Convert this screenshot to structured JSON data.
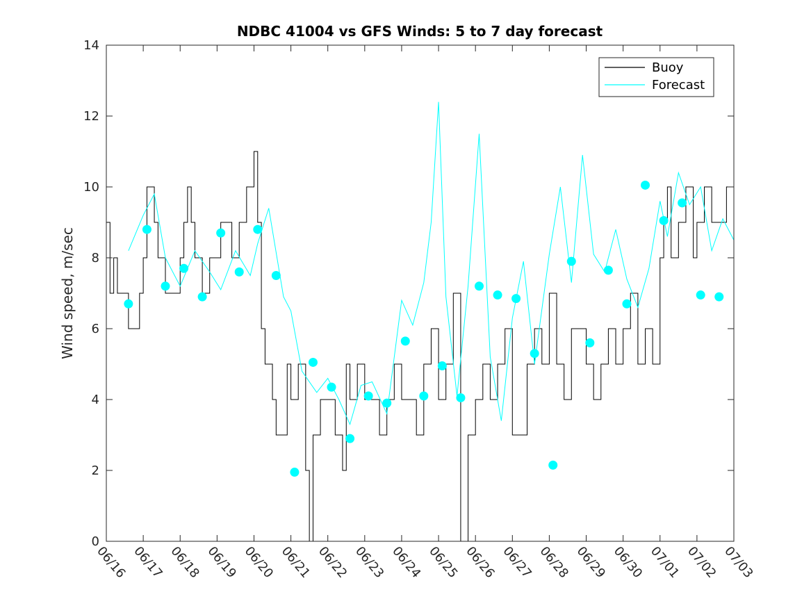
{
  "chart_data": {
    "type": "line",
    "title": "NDBC 41004 vs GFS Winds: 5 to 7 day forecast",
    "xlabel": "",
    "ylabel": "Wind speed, m/sec",
    "ylim": [
      0,
      14
    ],
    "yticks": [
      0,
      2,
      4,
      6,
      8,
      10,
      12,
      14
    ],
    "x_range_days": [
      "06/16",
      "07/03"
    ],
    "xtick_labels": [
      "06/16",
      "06/17",
      "06/18",
      "06/19",
      "06/20",
      "06/21",
      "06/22",
      "06/23",
      "06/24",
      "06/25",
      "06/26",
      "06/27",
      "06/28",
      "06/29",
      "06/30",
      "07/01",
      "07/02",
      "07/03"
    ],
    "legend": {
      "placement": "top-right",
      "entries": [
        "Buoy",
        "Forecast"
      ]
    },
    "grid": false,
    "colors": {
      "buoy": "#000000",
      "forecast": "#00ffff"
    },
    "series": [
      {
        "name": "Buoy",
        "style": "stair-line",
        "x_days": [
          0,
          0.1,
          0.2,
          0.3,
          0.5,
          0.6,
          0.7,
          0.9,
          1.0,
          1.1,
          1.2,
          1.3,
          1.4,
          1.6,
          1.8,
          2.0,
          2.1,
          2.2,
          2.3,
          2.4,
          2.5,
          2.6,
          2.8,
          3.0,
          3.1,
          3.2,
          3.3,
          3.4,
          3.6,
          3.8,
          4.0,
          4.1,
          4.2,
          4.3,
          4.5,
          4.6,
          4.7,
          4.9,
          5.0,
          5.2,
          5.4,
          5.5,
          5.6,
          5.8,
          6.0,
          6.2,
          6.4,
          6.5,
          6.6,
          6.8,
          7.0,
          7.2,
          7.4,
          7.6,
          7.8,
          8.0,
          8.2,
          8.4,
          8.6,
          8.8,
          9.0,
          9.2,
          9.4,
          9.6,
          9.8,
          10.0,
          10.2,
          10.4,
          10.6,
          10.8,
          11.0,
          11.2,
          11.4,
          11.6,
          11.8,
          12.0,
          12.2,
          12.4,
          12.6,
          12.8,
          13.0,
          13.2,
          13.4,
          13.6,
          13.8,
          14.0,
          14.2,
          14.4,
          14.6,
          14.8,
          15.0,
          15.1,
          15.2,
          15.3,
          15.5,
          15.7,
          15.9,
          16.0,
          16.2,
          16.4,
          16.6,
          16.8,
          17.0
        ],
        "y": [
          9,
          7,
          8,
          7,
          7,
          6,
          6,
          7,
          8,
          10,
          10,
          9,
          8,
          7,
          7,
          8,
          9,
          10,
          9,
          8,
          8,
          7,
          8,
          8,
          9,
          9,
          9,
          8,
          9,
          10,
          11,
          9,
          6,
          5,
          4,
          3,
          3,
          5,
          4,
          5,
          2,
          0,
          3,
          4,
          4,
          3,
          2,
          5,
          4,
          5,
          4,
          4,
          3,
          4,
          5,
          4,
          4,
          3,
          5,
          6,
          4,
          5,
          7,
          0,
          3,
          4,
          5,
          4,
          5,
          6,
          3,
          3,
          5,
          6,
          5,
          7,
          5,
          4,
          6,
          6,
          5,
          4,
          5,
          6,
          5,
          6,
          7,
          5,
          6,
          5,
          8,
          9,
          10,
          8,
          9,
          10,
          8,
          9,
          10,
          9,
          9,
          10,
          9
        ]
      },
      {
        "name": "Forecast",
        "style": "thin-lines",
        "x_days": [
          0.6,
          1.0,
          1.3,
          1.6,
          2.0,
          2.4,
          2.8,
          3.1,
          3.5,
          3.9,
          4.1,
          4.4,
          4.8,
          5.0,
          5.3,
          5.7,
          6.0,
          6.3,
          6.6,
          6.9,
          7.2,
          7.6,
          8.0,
          8.3,
          8.6,
          8.8,
          9.0,
          9.2,
          9.5,
          9.8,
          10.1,
          10.4,
          10.7,
          11.0,
          11.3,
          11.6,
          12.0,
          12.3,
          12.6,
          12.9,
          13.2,
          13.5,
          13.8,
          14.1,
          14.4,
          14.7,
          15.0,
          15.2,
          15.5,
          15.8,
          16.1,
          16.4,
          16.7,
          17.0
        ],
        "y": [
          8.2,
          9.2,
          9.8,
          8.0,
          7.2,
          8.2,
          7.6,
          7.1,
          8.2,
          7.5,
          8.4,
          9.4,
          6.9,
          6.5,
          4.8,
          4.2,
          4.6,
          4.0,
          3.3,
          4.4,
          4.5,
          3.6,
          6.8,
          6.1,
          7.3,
          9.0,
          12.4,
          6.9,
          4.1,
          7.2,
          11.5,
          5.2,
          3.4,
          6.3,
          7.9,
          5.0,
          8.1,
          10.0,
          7.3,
          10.9,
          8.1,
          7.6,
          8.8,
          7.4,
          6.6,
          7.7,
          9.6,
          8.6,
          10.4,
          9.5,
          10.0,
          8.2,
          9.1,
          8.5
        ]
      },
      {
        "name": "",
        "style": "markers",
        "x_days": [
          0.6,
          1.1,
          1.6,
          2.1,
          2.6,
          3.1,
          3.6,
          4.1,
          4.6,
          5.1,
          5.6,
          6.1,
          6.6,
          7.1,
          7.6,
          8.1,
          8.6,
          9.1,
          9.6,
          10.1,
          10.6,
          11.1,
          11.6,
          12.1,
          12.6,
          13.1,
          13.6,
          14.1,
          14.6,
          15.1,
          15.6,
          16.1,
          16.6
        ],
        "y": [
          6.7,
          8.8,
          7.2,
          7.7,
          6.9,
          8.7,
          7.6,
          8.8,
          7.5,
          1.95,
          5.05,
          4.35,
          2.9,
          4.1,
          3.9,
          5.65,
          4.1,
          4.95,
          4.05,
          7.2,
          6.95,
          6.85,
          5.3,
          2.15,
          7.9,
          5.6,
          7.65,
          6.7,
          10.05,
          9.05,
          9.55,
          6.95,
          6.9
        ]
      }
    ]
  }
}
